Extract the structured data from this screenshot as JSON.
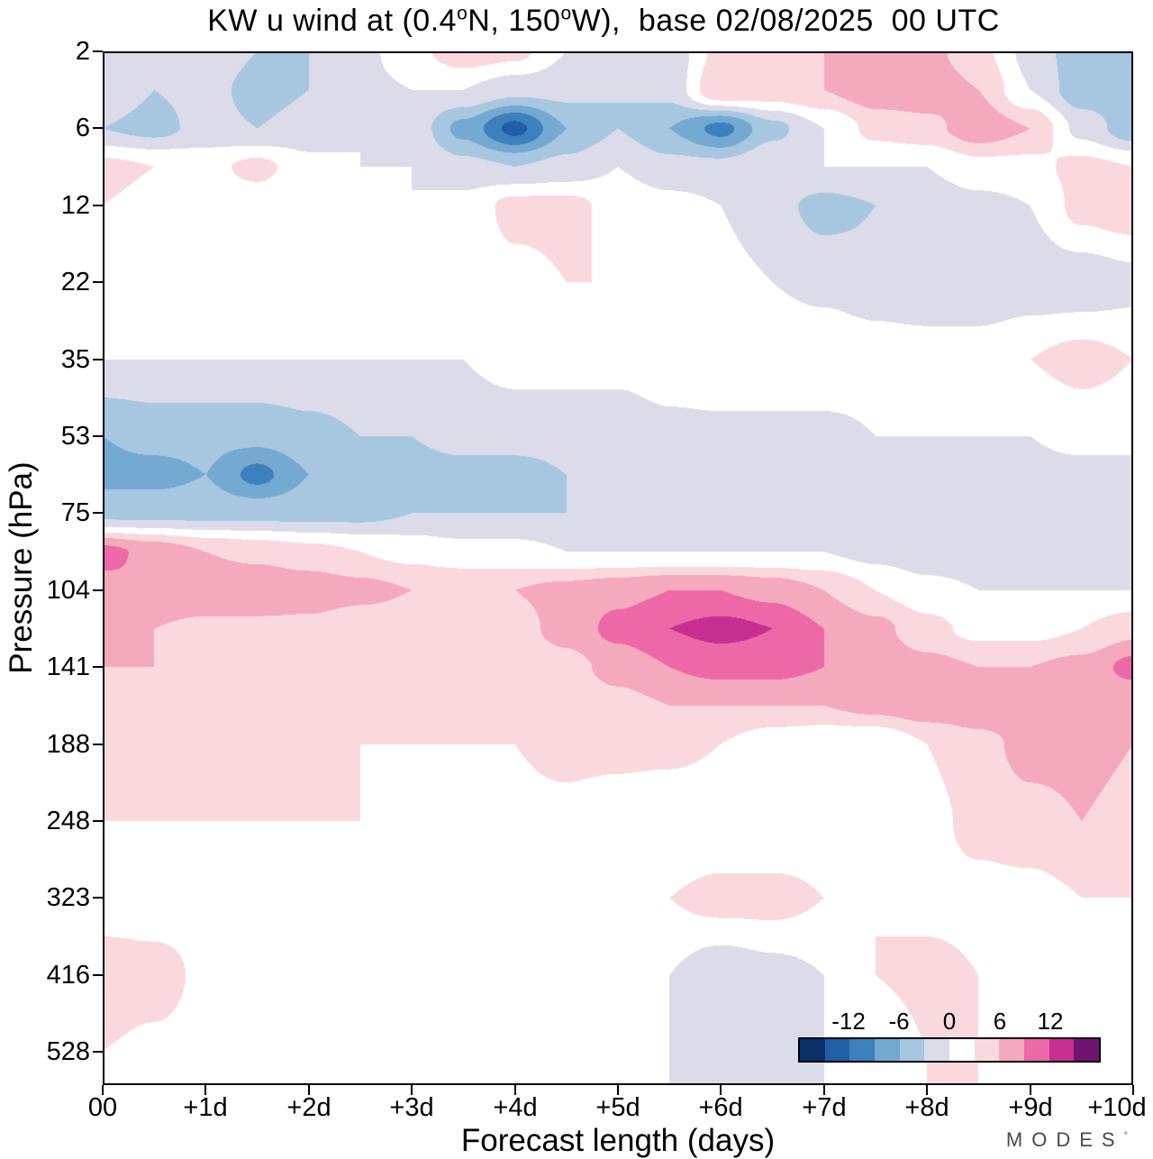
{
  "title": {
    "pre": "KW u wind at (0.4",
    "sup1": "o",
    "mid": "N, 150",
    "sup2": "o",
    "post": "W),  base 02/08/2025  00 UTC"
  },
  "y_axis": {
    "label": "Pressure (hPa)",
    "ticks": [
      "2",
      "6",
      "12",
      "22",
      "35",
      "53",
      "75",
      "104",
      "141",
      "188",
      "248",
      "323",
      "416",
      "528"
    ]
  },
  "x_axis": {
    "label": "Forecast length (days)",
    "ticks": [
      "00",
      "+1d",
      "+2d",
      "+3d",
      "+4d",
      "+5d",
      "+6d",
      "+7d",
      "+8d",
      "+9d",
      "+10d"
    ]
  },
  "colorbar": {
    "tick_labels": [
      "-12",
      "-6",
      "0",
      "6",
      "12"
    ],
    "levels": [
      -15,
      -12,
      -9,
      -6,
      -3,
      0,
      3,
      6,
      9,
      12,
      15
    ],
    "colors": [
      "#0b3067",
      "#1e5fa5",
      "#3c80bd",
      "#74a9d1",
      "#a7c6e0",
      "#dcdbe9",
      "#ffffff",
      "#fad9de",
      "#f5a9bd",
      "#ec68a7",
      "#c62e92",
      "#6e1370"
    ]
  },
  "watermark": {
    "text": "MODES",
    "mark": "°"
  },
  "chart_data": {
    "type": "filled_contour",
    "title": "KW u wind at (0.4N, 150W), base 02/08/2025 00 UTC",
    "xlabel": "Forecast length (days)",
    "ylabel": "Pressure (hPa)",
    "contour_interval": 3,
    "value_range": [
      -15,
      15
    ],
    "x_days": [
      0,
      0.5,
      1,
      1.5,
      2,
      2.5,
      3,
      3.5,
      4,
      4.5,
      5,
      5.5,
      6,
      6.5,
      7,
      7.5,
      8,
      8.5,
      9,
      9.5,
      10
    ],
    "pressure_levels_hpa": [
      2,
      3.5,
      6,
      8.5,
      12,
      22,
      35,
      53,
      63,
      75,
      89,
      104,
      121,
      141,
      163,
      188,
      248,
      323,
      416,
      528,
      620
    ],
    "row_idx": [
      0,
      0.5,
      1,
      1.5,
      2,
      3,
      4,
      5,
      5.5,
      6,
      6.5,
      7,
      7.5,
      8,
      8.5,
      9,
      10,
      11,
      12,
      13,
      14
    ],
    "bottom_idx": 13.43,
    "values": [
      [
        -2,
        -2,
        -1,
        -3,
        -3,
        -1,
        2,
        5,
        4,
        0,
        -2,
        -2,
        4,
        5,
        6,
        7,
        7,
        4,
        -1,
        -5,
        -5
      ],
      [
        -1,
        -3,
        -2,
        -4,
        -3,
        -1,
        0,
        0,
        -2,
        -2,
        -3,
        -2,
        6,
        5,
        6,
        8,
        8,
        6,
        0,
        -5,
        -5
      ],
      [
        -3,
        -4,
        -2,
        -3,
        -2,
        0,
        -1,
        -7,
        -13,
        -6,
        -3,
        -6,
        -10,
        -4,
        0,
        4,
        5,
        8,
        6,
        -1,
        -5
      ],
      [
        4,
        3,
        2,
        4,
        1,
        0,
        0,
        -2,
        -3,
        -2,
        0,
        -2,
        -2,
        0,
        0,
        0,
        0,
        2,
        2,
        4,
        3
      ],
      [
        3,
        2,
        1,
        1,
        0,
        0,
        0,
        1,
        4,
        4,
        2,
        1,
        0,
        -2,
        -4,
        -3,
        -2,
        -1,
        0,
        4,
        5
      ],
      [
        0,
        0,
        0,
        0,
        0,
        0,
        1,
        1,
        2,
        3,
        3,
        2,
        1,
        0,
        -1,
        -2,
        -3,
        -3,
        -2,
        -2,
        -1
      ],
      [
        0,
        0,
        0,
        0,
        0,
        0,
        0,
        0,
        1,
        1,
        1,
        2,
        3,
        3,
        3,
        2,
        2,
        2,
        3,
        4,
        3
      ],
      [
        -6,
        -5,
        -5,
        -5,
        -4,
        -3,
        -3,
        -2,
        -2,
        -2,
        -2,
        -1,
        -1,
        -1,
        -1,
        0,
        0,
        0,
        0,
        1,
        1
      ],
      [
        -7,
        -7,
        -6,
        -10,
        -6,
        -5,
        -4,
        -4,
        -4,
        -3,
        -3,
        -3,
        -2,
        -2,
        -2,
        -1,
        -1,
        -1,
        -1,
        -1,
        -1
      ],
      [
        -4,
        -4,
        -4,
        -4,
        -4,
        -4,
        -3,
        -3,
        -3,
        -3,
        -3,
        -2,
        -2,
        -2,
        -2,
        -2,
        -3,
        -3,
        -3,
        -3,
        -3
      ],
      [
        10,
        8,
        6,
        5,
        4,
        3,
        2,
        1,
        1,
        0,
        0,
        0,
        0,
        0,
        0,
        -1,
        -2,
        -2,
        -3,
        -3,
        -3
      ],
      [
        8,
        9,
        9,
        9,
        8,
        7,
        6,
        6,
        6,
        7,
        8,
        9,
        9,
        8,
        6,
        3,
        1,
        0,
        0,
        0,
        0
      ],
      [
        6,
        6,
        5,
        5,
        5,
        4,
        4,
        4,
        5,
        7,
        10,
        12,
        13,
        12,
        9,
        7,
        4,
        2,
        2,
        3,
        5
      ],
      [
        6,
        6,
        6,
        6,
        6,
        5,
        4,
        4,
        4,
        5,
        7,
        9,
        10,
        10,
        9,
        8,
        7,
        6,
        6,
        7,
        10
      ],
      [
        4,
        4,
        5,
        5,
        4,
        4,
        3,
        3,
        4,
        4,
        5,
        6,
        6,
        6,
        6,
        7,
        8,
        8,
        8,
        7,
        6
      ],
      [
        3,
        3,
        4,
        4,
        4,
        3,
        3,
        3,
        3,
        4,
        4,
        4,
        3,
        1,
        0,
        0,
        3,
        5,
        7,
        7,
        6
      ],
      [
        3,
        3,
        3,
        3,
        3,
        3,
        2,
        2,
        2,
        2,
        1,
        0,
        0,
        0,
        1,
        1,
        2,
        4,
        5,
        6,
        5
      ],
      [
        0,
        0,
        1,
        1,
        1,
        0,
        0,
        0,
        0,
        0,
        1,
        3,
        4,
        4,
        3,
        3,
        2,
        2,
        2,
        3,
        3
      ],
      [
        6,
        5,
        2,
        1,
        0,
        0,
        0,
        0,
        0,
        0,
        0,
        0,
        -2,
        -1,
        0,
        3,
        4,
        3,
        3,
        2,
        1
      ],
      [
        3,
        2,
        1,
        0,
        0,
        0,
        0,
        0,
        0,
        0,
        0,
        0,
        -2,
        -1,
        0,
        0,
        3,
        3,
        2,
        0,
        0
      ],
      [
        3,
        2,
        1,
        0,
        0,
        0,
        0,
        0,
        0,
        0,
        0,
        0,
        -2,
        -1,
        0,
        0,
        3,
        3,
        2,
        0,
        0
      ]
    ]
  }
}
